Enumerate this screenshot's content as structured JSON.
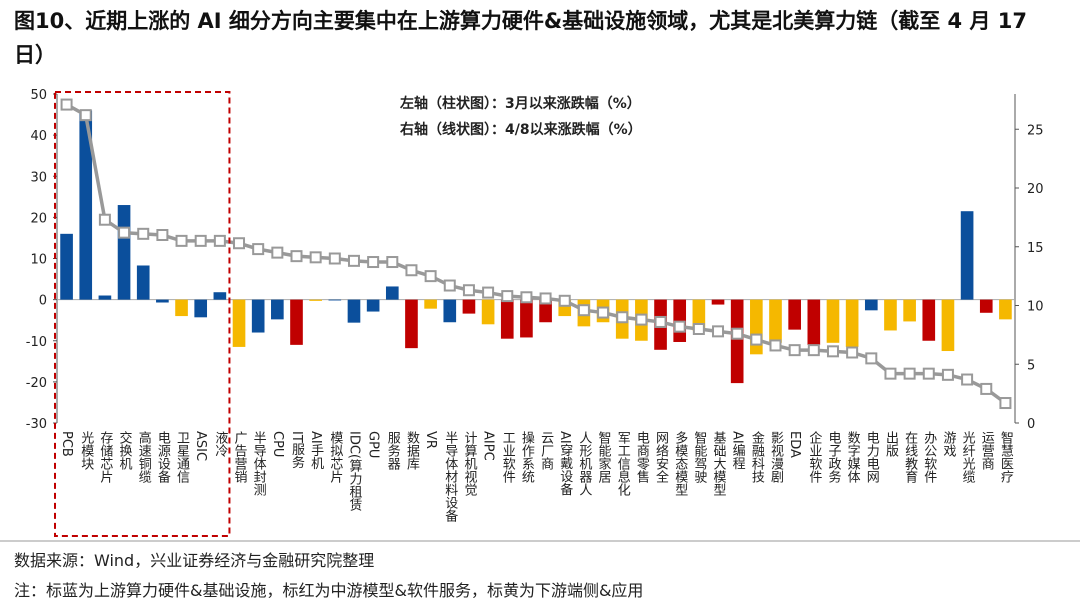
{
  "chart_data": {
    "type": "bar-line",
    "title": "图10、近期上涨的 AI 细分方向主要集中在上游算力硬件&基础设施领域，尤其是北美算力链（截至 4 月 17 日）",
    "annotations": [
      "左轴（柱状图）：3月以来涨跌幅（%）",
      "右轴（线状图）：4/8以来涨跌幅（%）"
    ],
    "source": "数据来源：Wind，兴业证券经济与金融研究院整理",
    "note": "注：标蓝为上游算力硬件&基础设施，标红为中游模型&软件服务，标黄为下游端侧&应用",
    "categories": [
      "PCB",
      "光模块",
      "存储芯片",
      "交换机",
      "高速铜缆",
      "电源设备",
      "卫星通信",
      "ASIC",
      "液冷",
      "广告营销",
      "半导体封测",
      "CPU",
      "IT服务",
      "AI手机",
      "模拟芯片",
      "IDC(算力租赁",
      "GPU",
      "服务器",
      "数据库",
      "VR",
      "半导体材料设备",
      "计算机视觉",
      "AIPC",
      "工业软件",
      "操作系统",
      "云厂商",
      "AI穿戴设备",
      "人形机器人",
      "智能家居",
      "军工信息化",
      "电商零售",
      "网络安全",
      "多模态模型",
      "智能驾驶",
      "基础大模型",
      "AI编程",
      "金融科技",
      "影视漫剧",
      "EDA",
      "企业软件",
      "电子政务",
      "数字媒体",
      "电力电网",
      "出版",
      "在线教育",
      "办公软件",
      "游戏",
      "光纤光缆",
      "运营商",
      "智慧医疗"
    ],
    "bars": {
      "values": [
        16,
        46,
        1,
        23,
        8.3,
        -0.7,
        -4,
        -4.3,
        1.8,
        -11.5,
        -8,
        -4.8,
        -11,
        -0.3,
        -0.2,
        -5.6,
        -2.9,
        3.2,
        -11.8,
        -2.2,
        -5.5,
        -3.4,
        -6,
        -9.5,
        -9.2,
        -5.5,
        -4,
        -6.5,
        -5.5,
        -9.5,
        -10,
        -12.2,
        -10.3,
        -7.5,
        -1.2,
        -20.3,
        -13.3,
        -10.5,
        -7.3,
        -11,
        -10.5,
        -11.5,
        -2.6,
        -7.5,
        -5.3,
        -10,
        -12.5,
        21.5,
        -3.2,
        -4.8
      ],
      "colors": [
        "#0b4f9c",
        "#0b4f9c",
        "#0b4f9c",
        "#0b4f9c",
        "#0b4f9c",
        "#0b4f9c",
        "#f5b800",
        "#0b4f9c",
        "#0b4f9c",
        "#f5b800",
        "#0b4f9c",
        "#0b4f9c",
        "#c00000",
        "#f5b800",
        "#0b4f9c",
        "#0b4f9c",
        "#0b4f9c",
        "#0b4f9c",
        "#c00000",
        "#f5b800",
        "#0b4f9c",
        "#c00000",
        "#f5b800",
        "#c00000",
        "#c00000",
        "#c00000",
        "#f5b800",
        "#f5b800",
        "#f5b800",
        "#f5b800",
        "#f5b800",
        "#c00000",
        "#c00000",
        "#f5b800",
        "#c00000",
        "#c00000",
        "#f5b800",
        "#f5b800",
        "#c00000",
        "#c00000",
        "#f5b800",
        "#f5b800",
        "#0b4f9c",
        "#f5b800",
        "#f5b800",
        "#c00000",
        "#f5b800",
        "#0b4f9c",
        "#c00000",
        "#f5b800"
      ]
    },
    "line": {
      "axis": "y2",
      "color": "#999999",
      "values": [
        27.1,
        26.2,
        17.3,
        16.2,
        16.1,
        16.0,
        15.5,
        15.5,
        15.5,
        15.3,
        14.8,
        14.5,
        14.2,
        14.1,
        14.0,
        13.8,
        13.7,
        13.7,
        13.0,
        12.5,
        11.7,
        11.3,
        11.1,
        10.8,
        10.7,
        10.6,
        10.4,
        9.6,
        9.4,
        9.0,
        8.8,
        8.6,
        8.2,
        8.0,
        7.8,
        7.6,
        7.1,
        6.6,
        6.2,
        6.2,
        6.1,
        6.0,
        5.5,
        4.2,
        4.2,
        4.2,
        4.1,
        3.7,
        2.9,
        1.7
      ]
    },
    "ylim": [
      -30,
      50
    ],
    "yticks": [
      -30,
      -20,
      -10,
      0,
      10,
      20,
      30,
      40,
      50
    ],
    "y2lim": [
      0,
      28
    ],
    "y2ticks": [
      0,
      5,
      10,
      15,
      20,
      25
    ]
  }
}
